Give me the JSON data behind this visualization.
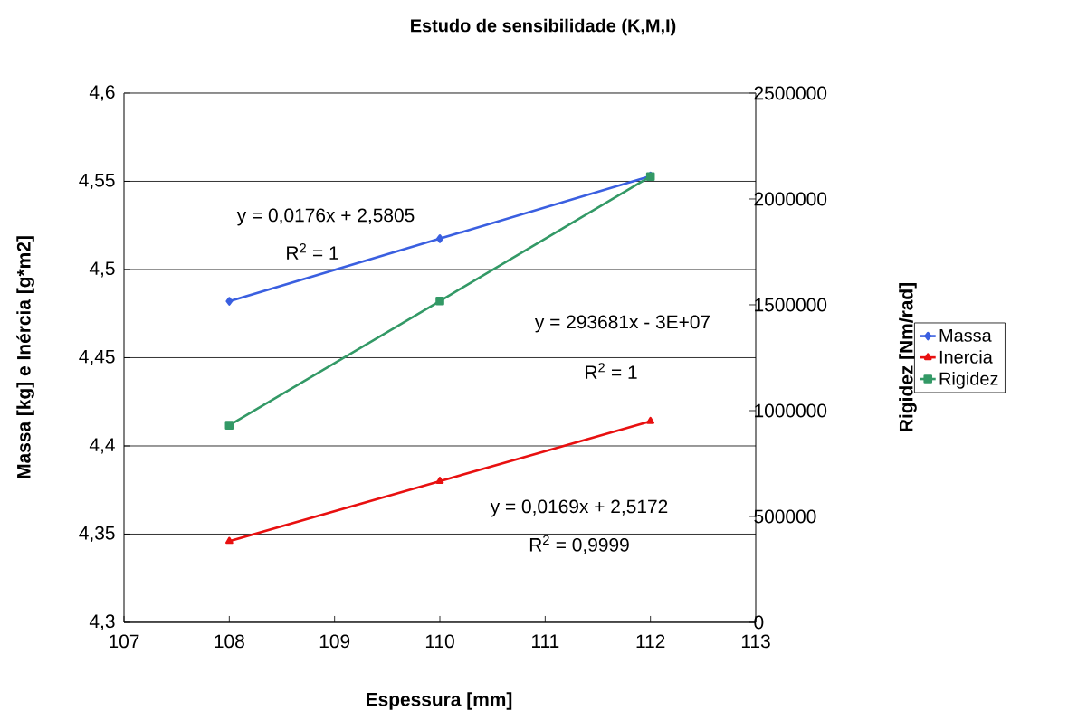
{
  "chart_data": {
    "type": "line",
    "title": "Estudo de sensibilidade (K,M,I)",
    "xlabel": "Espessura [mm]",
    "ylabel": "Massa [kg] e Inércia [g*m2]",
    "y2label": "Rigidez [Nm/rad]",
    "x": [
      108,
      110,
      112
    ],
    "series": [
      {
        "name": "Massa",
        "color": "#3a5fe0",
        "marker": "diamond",
        "values": [
          4.482,
          4.5175,
          4.553
        ]
      },
      {
        "name": "Inercia",
        "color": "#e81010",
        "marker": "triangle",
        "values": [
          4.346,
          4.38,
          4.414
        ]
      },
      {
        "name": "Rigidez",
        "color": "#339966",
        "marker": "square",
        "axis": "y2",
        "values": [
          931000,
          1518000,
          2106000
        ]
      }
    ],
    "xlim": [
      107,
      113
    ],
    "xticks": [
      107,
      108,
      109,
      110,
      111,
      112,
      113
    ],
    "ylim": [
      4.3,
      4.6
    ],
    "yticks": [
      {
        "value": 4.3,
        "label": "4,3"
      },
      {
        "value": 4.35,
        "label": "4,35"
      },
      {
        "value": 4.4,
        "label": "4,4"
      },
      {
        "value": 4.45,
        "label": "4,45"
      },
      {
        "value": 4.5,
        "label": "4,5"
      },
      {
        "value": 4.55,
        "label": "4,55"
      },
      {
        "value": 4.6,
        "label": "4,6"
      }
    ],
    "y2lim": [
      0,
      2500000
    ],
    "y2ticks": [
      0,
      500000,
      1000000,
      1500000,
      2000000,
      2500000
    ],
    "grid": "y",
    "legend": "right",
    "line_style": "solid",
    "annotations": [
      "y = 0,0176x + 2,5805",
      "R$^{2}$ = 1",
      "y = 293681x - 3E+07",
      "R$^{2}$ = 1",
      "y = 0,0169x + 2,5172",
      "R$^{2}$ = 0,9999"
    ]
  }
}
